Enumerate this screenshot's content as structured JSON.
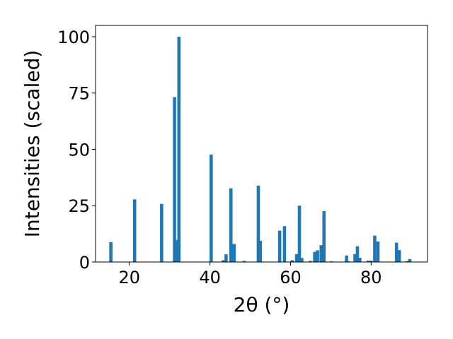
{
  "chart_data": {
    "type": "bar",
    "xlabel": "2θ (°)",
    "ylabel": "Intensities (scaled)",
    "xlim": [
      11.6,
      94
    ],
    "ylim": [
      0,
      105
    ],
    "xticks": [
      20,
      40,
      60,
      80
    ],
    "yticks": [
      0,
      25,
      50,
      75,
      100
    ],
    "grid": false,
    "bar_color": "#1f77b4",
    "bar_width": 0.8,
    "x": [
      15.4,
      21.3,
      28.0,
      31.2,
      31.7,
      32.3,
      40.3,
      43.3,
      44.0,
      45.2,
      46.0,
      48.5,
      52.0,
      52.5,
      57.3,
      58.5,
      60.4,
      61.5,
      62.2,
      62.8,
      64.9,
      66.0,
      66.7,
      67.6,
      68.3,
      70.2,
      73.9,
      74.4,
      76.0,
      76.6,
      77.2,
      79.3,
      80.0,
      80.9,
      81.7,
      86.3,
      87.0,
      89.0,
      89.6
    ],
    "values": [
      8.8,
      27.8,
      25.8,
      73.2,
      9.8,
      100.0,
      47.7,
      0.8,
      3.4,
      32.7,
      8.0,
      0.5,
      33.9,
      9.4,
      13.9,
      15.9,
      0.8,
      3.5,
      25.0,
      1.8,
      0.5,
      4.5,
      5.2,
      7.5,
      22.6,
      0.3,
      2.9,
      0.3,
      3.5,
      7.0,
      1.9,
      0.6,
      0.6,
      11.7,
      9.1,
      8.6,
      5.3,
      0.4,
      1.3
    ]
  }
}
